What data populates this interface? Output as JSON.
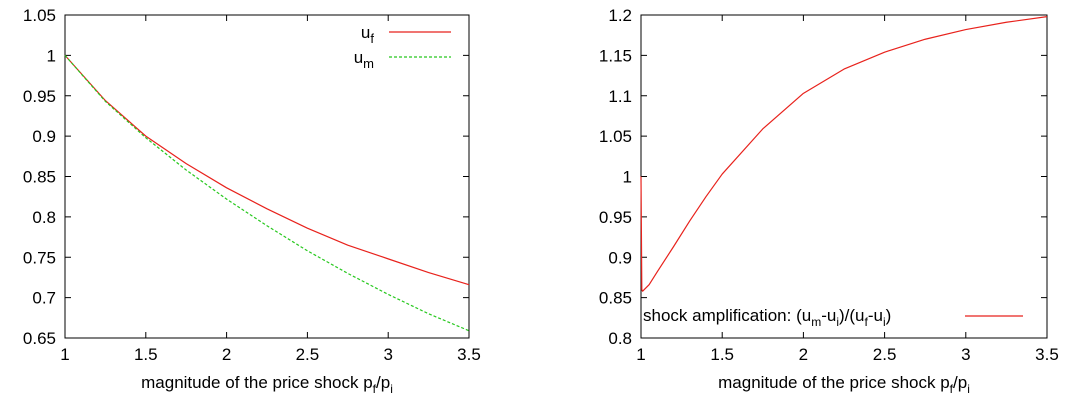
{
  "chart_data": [
    {
      "type": "line",
      "xlabel": {
        "text": "magnitude of the price shock p",
        "sub1": "f",
        "mid": "/p",
        "sub2": "i"
      },
      "xlim": [
        1,
        3.5
      ],
      "ylim": [
        0.65,
        1.05
      ],
      "xticks": [
        "1",
        "1.5",
        "2",
        "2.5",
        "3",
        "3.5"
      ],
      "yticks": [
        "0.65",
        "0.7",
        "0.75",
        "0.8",
        "0.85",
        "0.9",
        "0.95",
        "1",
        "1.05"
      ],
      "legend_position": "top-right",
      "x": [
        1,
        1.25,
        1.5,
        1.75,
        2,
        2.25,
        2.5,
        2.75,
        3,
        3.25,
        3.5
      ],
      "series": [
        {
          "name": "u",
          "sub": "f",
          "color": "#e8221c",
          "dash": "solid",
          "values": [
            1.0,
            0.944,
            0.9,
            0.866,
            0.836,
            0.81,
            0.786,
            0.765,
            0.748,
            0.731,
            0.716
          ]
        },
        {
          "name": "u",
          "sub": "m",
          "color": "#27c81e",
          "dash": "dashed",
          "values": [
            1.0,
            0.943,
            0.898,
            0.858,
            0.822,
            0.789,
            0.758,
            0.73,
            0.704,
            0.68,
            0.659
          ]
        }
      ]
    },
    {
      "type": "line",
      "xlabel": {
        "text": "magnitude of the price shock p",
        "sub1": "f",
        "mid": "/p",
        "sub2": "i"
      },
      "xlim": [
        1,
        3.5
      ],
      "ylim": [
        0.8,
        1.2
      ],
      "xticks": [
        "1",
        "1.5",
        "2",
        "2.5",
        "3",
        "3.5"
      ],
      "yticks": [
        "0.8",
        "0.85",
        "0.9",
        "0.95",
        "1",
        "1.05",
        "1.1",
        "1.15",
        "1.2"
      ],
      "legend_position": "bottom-left",
      "x": [
        1.0,
        1.005,
        1.01,
        1.05,
        1.1,
        1.2,
        1.3,
        1.4,
        1.5,
        1.75,
        2.0,
        2.25,
        2.5,
        2.75,
        3.0,
        3.25,
        3.5
      ],
      "series": [
        {
          "name": "shock amplification: (u",
          "parts": [
            "m",
            "-u",
            "i",
            ")/(u",
            "f",
            "-u",
            "i",
            ")"
          ],
          "color": "#e8221c",
          "dash": "solid",
          "values": [
            1.0,
            0.86,
            0.858,
            0.866,
            0.882,
            0.913,
            0.945,
            0.975,
            1.003,
            1.059,
            1.103,
            1.133,
            1.154,
            1.17,
            1.182,
            1.191,
            1.198
          ]
        }
      ]
    }
  ]
}
